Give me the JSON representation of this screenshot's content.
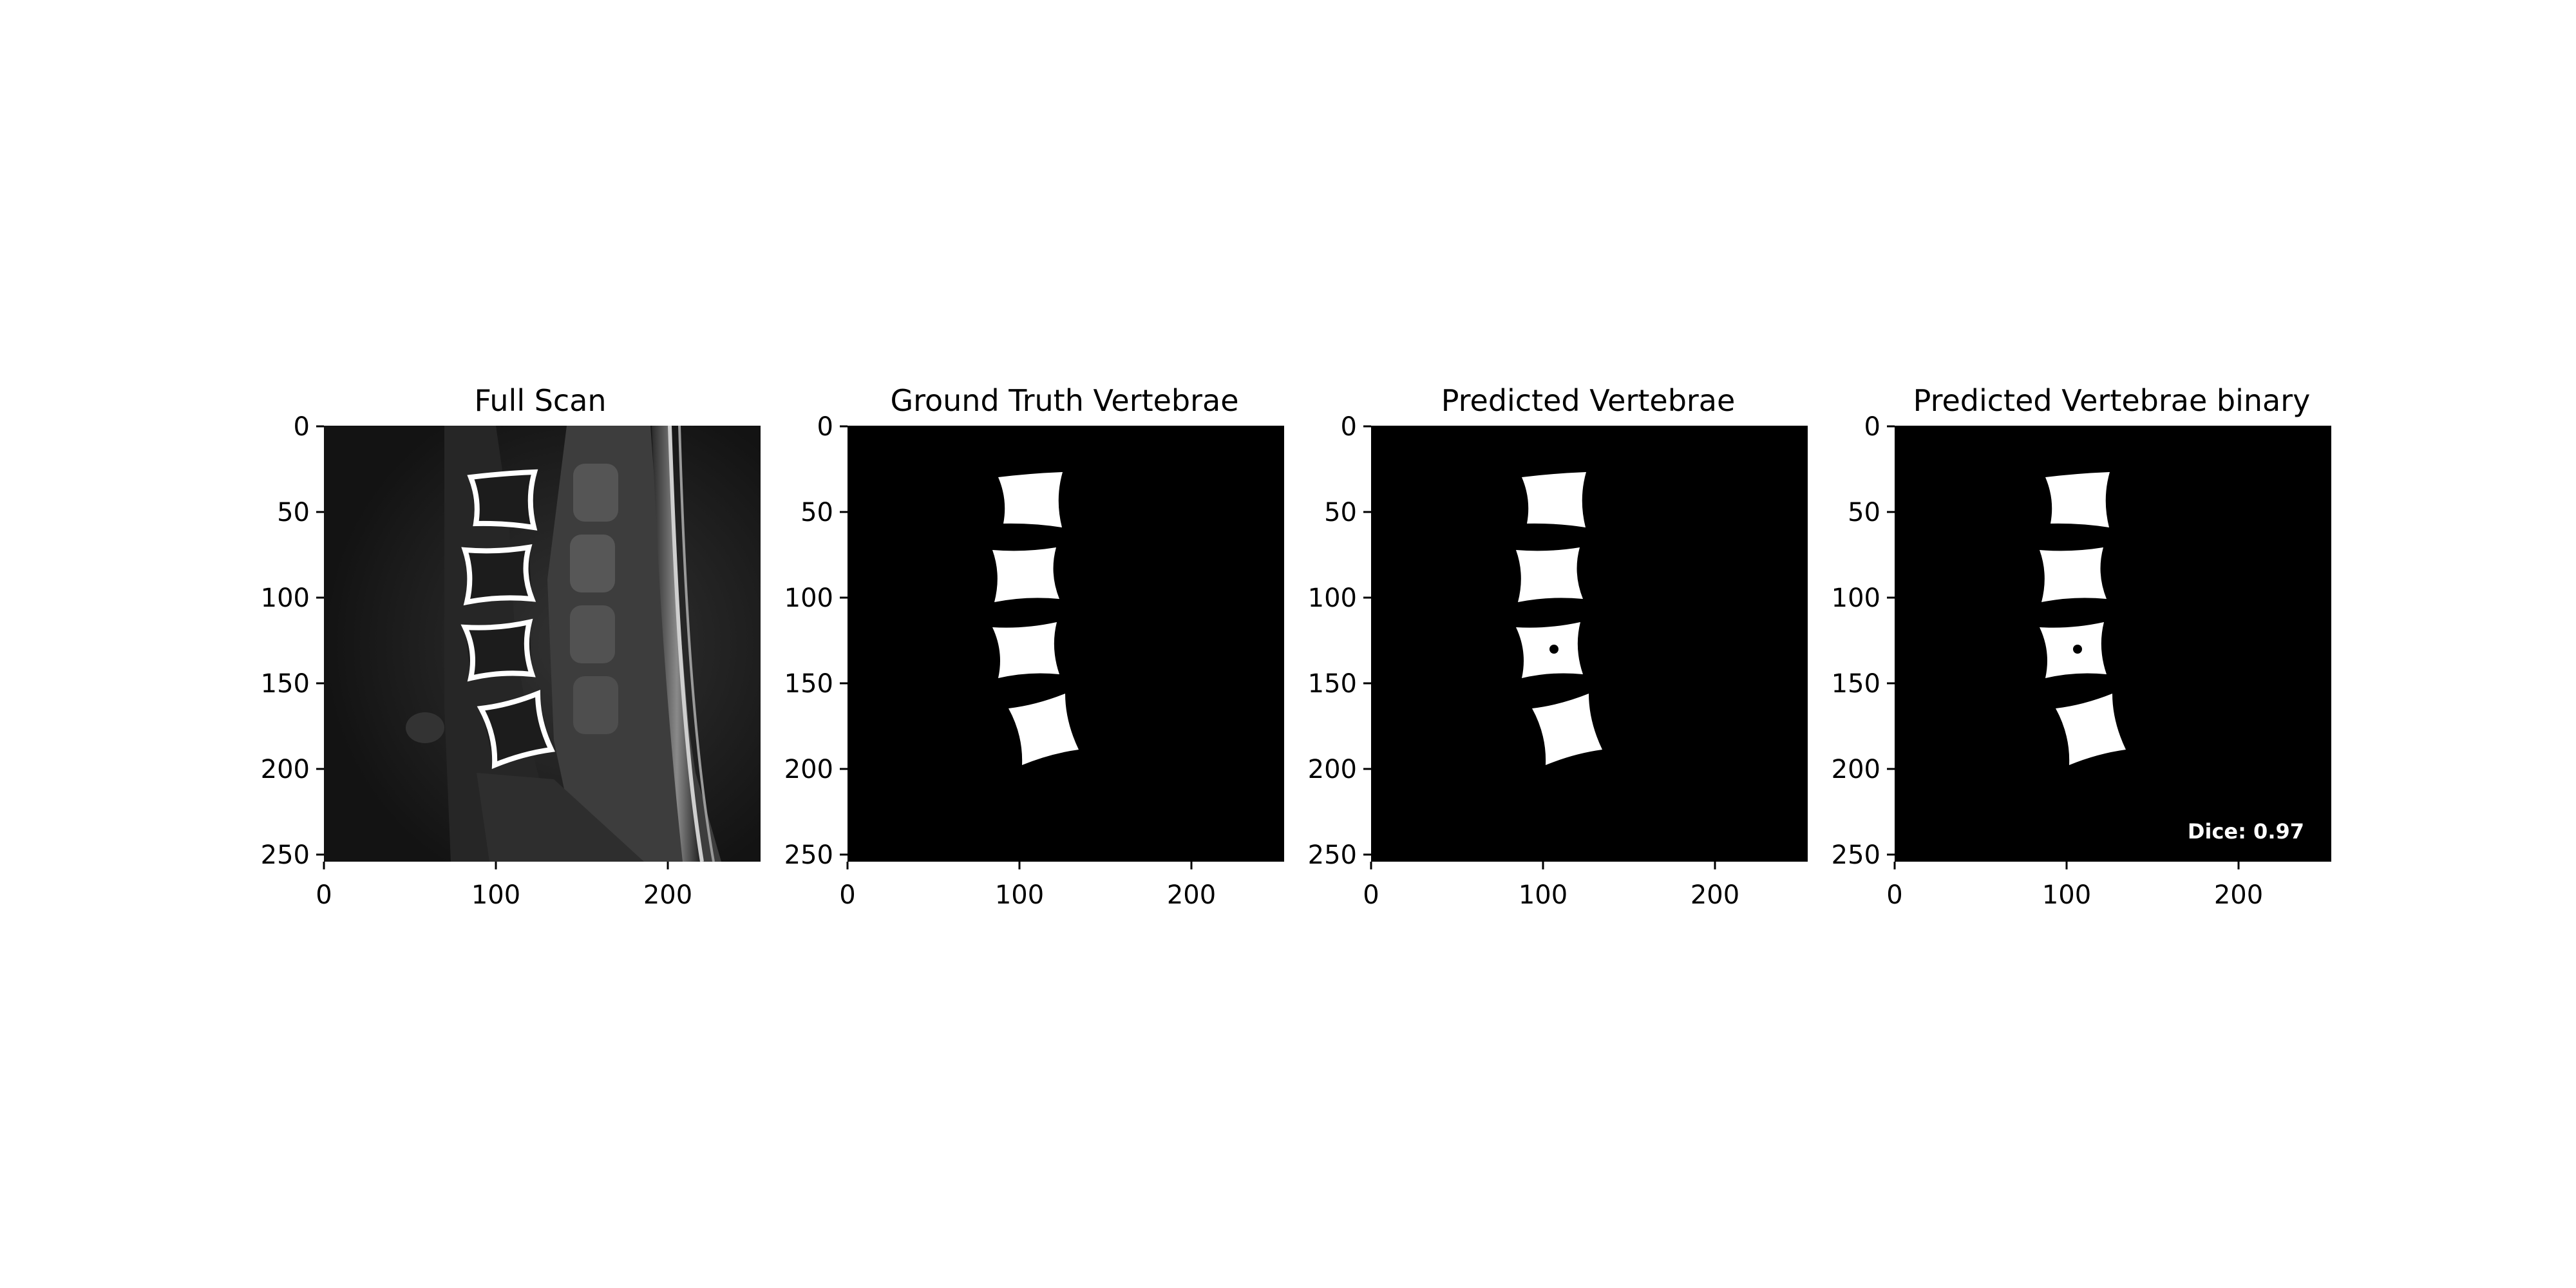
{
  "figure": {
    "panels": [
      {
        "title": "Full Scan",
        "kind": "mri-scan-with-outlines",
        "image_rows": 256,
        "image_cols": 256,
        "xticks": [
          "0",
          "100",
          "200"
        ],
        "yticks": [
          "0",
          "50",
          "100",
          "150",
          "200",
          "250"
        ],
        "annotation": ""
      },
      {
        "title": "Ground Truth Vertebrae",
        "kind": "binary-mask",
        "image_rows": 256,
        "image_cols": 256,
        "xticks": [
          "0",
          "100",
          "200"
        ],
        "yticks": [
          "0",
          "50",
          "100",
          "150",
          "200",
          "250"
        ],
        "annotation": ""
      },
      {
        "title": "Predicted Vertebrae",
        "kind": "binary-mask",
        "image_rows": 256,
        "image_cols": 256,
        "xticks": [
          "0",
          "100",
          "200"
        ],
        "yticks": [
          "0",
          "50",
          "100",
          "150",
          "200",
          "250"
        ],
        "annotation": ""
      },
      {
        "title": "Predicted Vertebrae binary",
        "kind": "binary-mask",
        "image_rows": 256,
        "image_cols": 256,
        "xticks": [
          "0",
          "100",
          "200"
        ],
        "yticks": [
          "0",
          "50",
          "100",
          "150",
          "200",
          "250"
        ],
        "annotation": "Dice: 0.97"
      }
    ],
    "colors": {
      "background": "#ffffff",
      "image_background": "#000000",
      "mask": "#ffffff",
      "text": "#000000"
    }
  }
}
